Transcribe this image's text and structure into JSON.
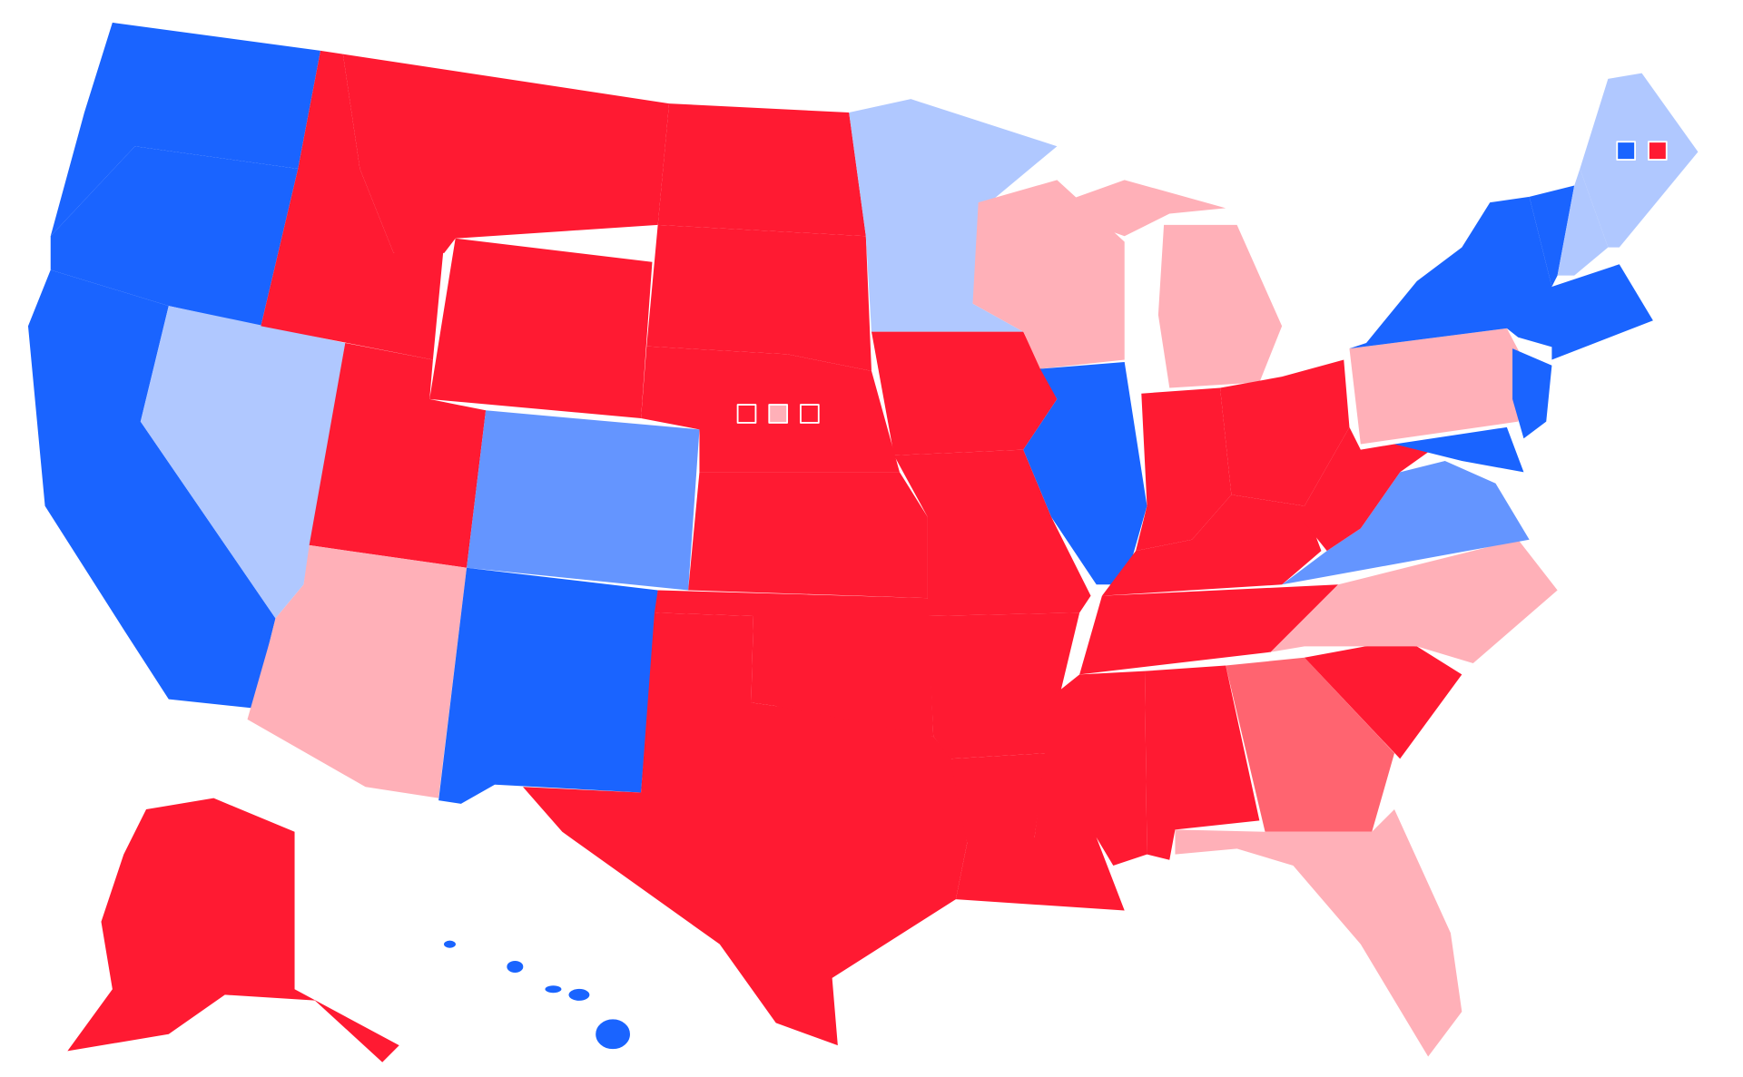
{
  "map": {
    "regions": [
      {
        "color": "#1a64ff"
      },
      {
        "color": "#1a64ff"
      },
      {
        "color": "#1a64ff"
      },
      {
        "color": "#b0c8ff"
      },
      {
        "color": "#ff1a32"
      },
      {
        "color": "#ff1a32"
      },
      {
        "color": "#ff1a32"
      },
      {
        "color": "#ff1a32"
      },
      {
        "color": "#ffb0b8"
      },
      {
        "color": "#6495ff"
      },
      {
        "color": "#1a64ff"
      },
      {
        "color": "#ff1a32"
      },
      {
        "color": "#ff1a32"
      },
      {
        "color": "#ff1a32"
      },
      {
        "color": "#ff1a32"
      },
      {
        "color": "#ff1a32"
      },
      {
        "color": "#ff1a32"
      },
      {
        "color": "#b0c8ff"
      },
      {
        "color": "#ff1a32"
      },
      {
        "color": "#ff1a32"
      },
      {
        "color": "#ff1a32"
      },
      {
        "color": "#ff1a32"
      },
      {
        "color": "#ffb0b8"
      },
      {
        "color": "#1a64ff"
      },
      {
        "color": "#ffb0b8"
      },
      {
        "color": "#ff1a32"
      },
      {
        "color": "#ff1a32"
      },
      {
        "color": "#ff1a32"
      },
      {
        "color": "#ff1a32"
      },
      {
        "color": "#ff1a32"
      },
      {
        "color": "#ff1a32"
      },
      {
        "color": "#ff6470"
      },
      {
        "color": "#ffb0b8"
      },
      {
        "color": "#ff1a32"
      },
      {
        "color": "#ffb0b8"
      },
      {
        "color": "#6495ff"
      },
      {
        "color": "#ff1a32"
      },
      {
        "color": "#ffb0b8"
      },
      {
        "color": "#1a64ff"
      },
      {
        "color": "#1a64ff"
      },
      {
        "color": "#1a64ff"
      },
      {
        "color": "#1a64ff"
      },
      {
        "color": "#b0c8ff"
      },
      {
        "color": "#b0c8ff"
      },
      {
        "color": "#1a64ff"
      },
      {
        "color": "#ff1a32"
      },
      {
        "color": "#1a64ff"
      },
      {
        "color": "#ff1a32"
      },
      {
        "color": "#ffb0b8"
      },
      {
        "color": "#ff1a32"
      },
      {
        "color": "#1a64ff"
      },
      {
        "color": "#ff1a32"
      }
    ]
  }
}
